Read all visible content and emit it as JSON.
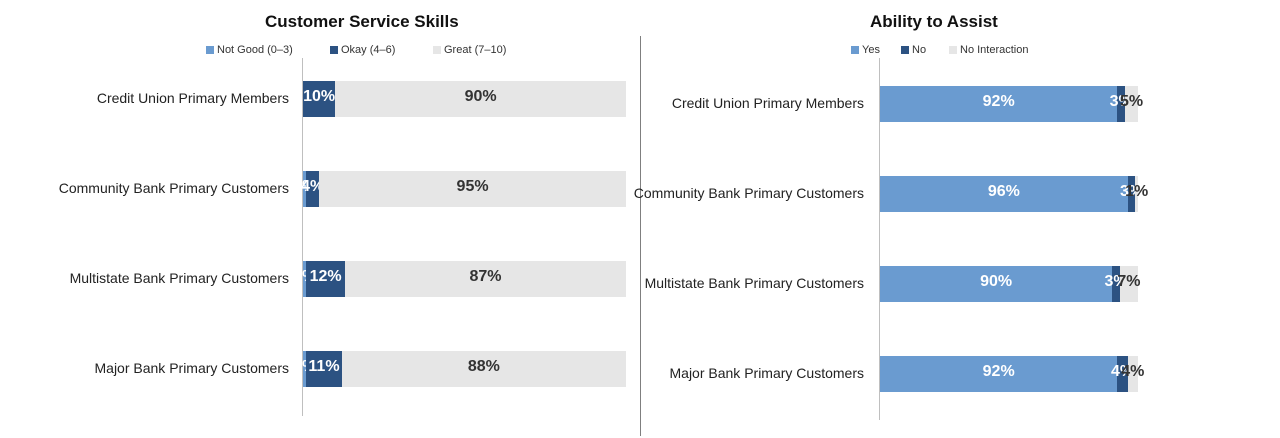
{
  "chart_data": [
    {
      "type": "bar",
      "orientation": "horizontal",
      "stacked": true,
      "title": "Customer Service Skills",
      "legend_position": "top",
      "categories": [
        "Credit Union Primary Members",
        "Community Bank Primary Customers",
        "Multistate Bank Primary Customers",
        "Major Bank Primary Customers"
      ],
      "series": [
        {
          "name": "Not Good (0–3)",
          "color": "#6a9bd0",
          "label_color": "#ffffff",
          "values": [
            0,
            1,
            1,
            1
          ],
          "labels": [
            "",
            "1%",
            "1%",
            "1%"
          ]
        },
        {
          "name": "Okay (4–6)",
          "color": "#2c5282",
          "label_color": "#ffffff",
          "values": [
            10,
            4,
            12,
            11
          ],
          "labels": [
            "10%",
            "4%",
            "12%",
            "11%"
          ]
        },
        {
          "name": "Great (7–10)",
          "color": "#e6e6e6",
          "label_color": "#333333",
          "values": [
            90,
            95,
            87,
            88
          ],
          "labels": [
            "90%",
            "95%",
            "87%",
            "88%"
          ]
        }
      ]
    },
    {
      "type": "bar",
      "orientation": "horizontal",
      "stacked": true,
      "title": "Ability to Assist",
      "legend_position": "top",
      "categories": [
        "Credit Union Primary Members",
        "Community Bank Primary Customers",
        "Multistate Bank Primary Customers",
        "Major Bank Primary Customers"
      ],
      "series": [
        {
          "name": "Yes",
          "color": "#6a9bd0",
          "label_color": "#ffffff",
          "values": [
            92,
            96,
            90,
            92
          ],
          "labels": [
            "92%",
            "96%",
            "90%",
            "92%"
          ]
        },
        {
          "name": "No",
          "color": "#2c5282",
          "label_color": "#ffffff",
          "values": [
            3,
            3,
            3,
            4
          ],
          "labels": [
            "3%",
            "3%",
            "3%",
            "4%"
          ]
        },
        {
          "name": "No Interaction",
          "color": "#e6e6e6",
          "label_color": "#333333",
          "values": [
            5,
            1,
            7,
            4
          ],
          "labels": [
            "5%",
            "1%",
            "7%",
            "4%"
          ]
        }
      ]
    }
  ]
}
